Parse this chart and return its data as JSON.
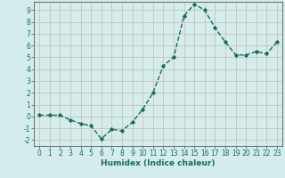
{
  "x": [
    0,
    1,
    2,
    3,
    4,
    5,
    6,
    7,
    8,
    9,
    10,
    11,
    12,
    13,
    14,
    15,
    16,
    17,
    18,
    19,
    20,
    21,
    22,
    23
  ],
  "y": [
    0.1,
    0.1,
    0.1,
    -0.3,
    -0.6,
    -0.8,
    -1.9,
    -1.1,
    -1.2,
    -0.5,
    0.6,
    2.0,
    4.3,
    5.0,
    8.5,
    9.5,
    9.0,
    7.5,
    6.3,
    5.2,
    5.2,
    5.5,
    5.3,
    6.3
  ],
  "line_color": "#1a6b5a",
  "marker": "D",
  "markersize": 1.8,
  "linewidth": 1.0,
  "xlabel": "Humidex (Indice chaleur)",
  "xlim": [
    -0.5,
    23.5
  ],
  "ylim": [
    -2.5,
    9.7
  ],
  "yticks": [
    -2,
    -1,
    0,
    1,
    2,
    3,
    4,
    5,
    6,
    7,
    8,
    9
  ],
  "xticks": [
    0,
    1,
    2,
    3,
    4,
    5,
    6,
    7,
    8,
    9,
    10,
    11,
    12,
    13,
    14,
    15,
    16,
    17,
    18,
    19,
    20,
    21,
    22,
    23
  ],
  "grid_color": "#c8b8b8",
  "bg_color": "#d4ecec",
  "xlabel_fontsize": 6.5,
  "tick_fontsize": 5.5
}
